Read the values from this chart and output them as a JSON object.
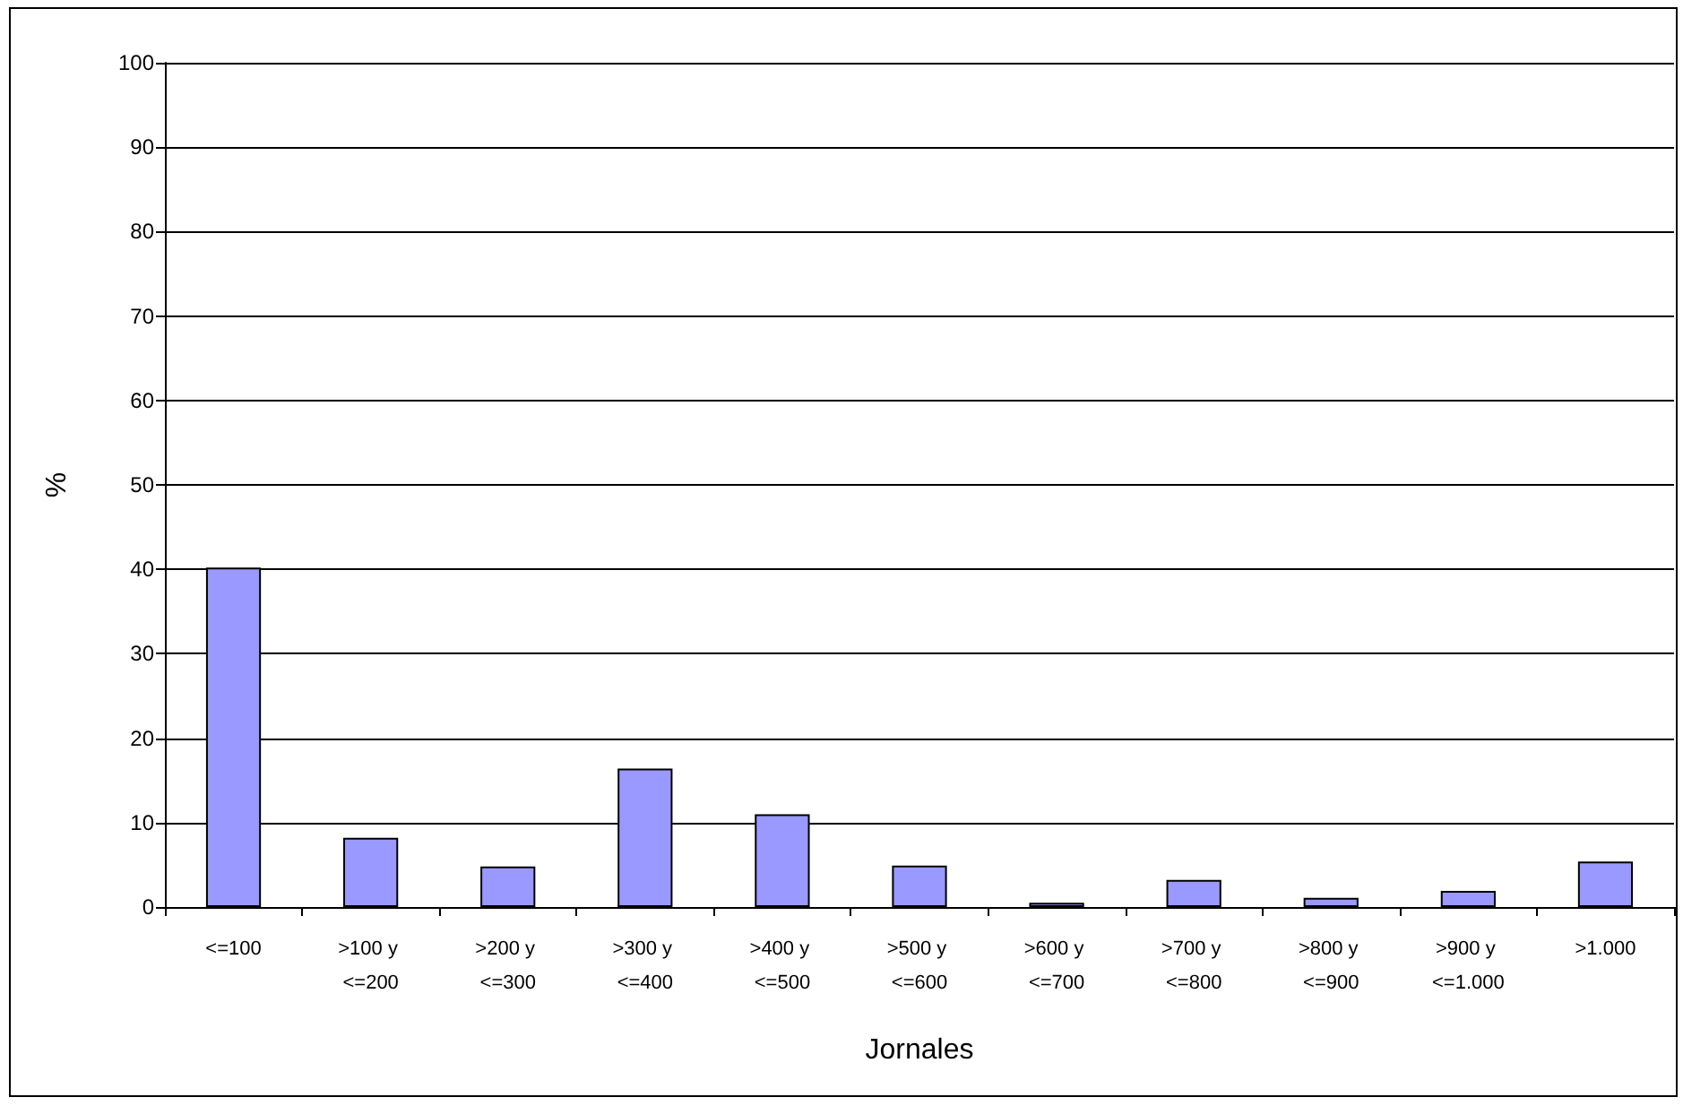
{
  "chart_data": {
    "type": "bar",
    "xlabel": "Jornales",
    "ylabel": "%",
    "categories": [
      "<=100",
      ">100 y <=200",
      ">200 y <=300",
      ">300 y <=400",
      ">400 y <=500",
      ">500 y <=600",
      ">600 y <=700",
      ">700 y <=800",
      ">800 y <=900",
      ">900 y <=1.000",
      ">1.000"
    ],
    "values": [
      40.2,
      8.2,
      4.8,
      16.4,
      11.0,
      4.9,
      0.5,
      3.2,
      1.1,
      1.9,
      5.4
    ],
    "color": "#9999ff",
    "ylim": [
      0,
      100
    ],
    "yticks": [
      0,
      10,
      20,
      30,
      40,
      50,
      60,
      70,
      80,
      90,
      100
    ],
    "grid": "y"
  }
}
